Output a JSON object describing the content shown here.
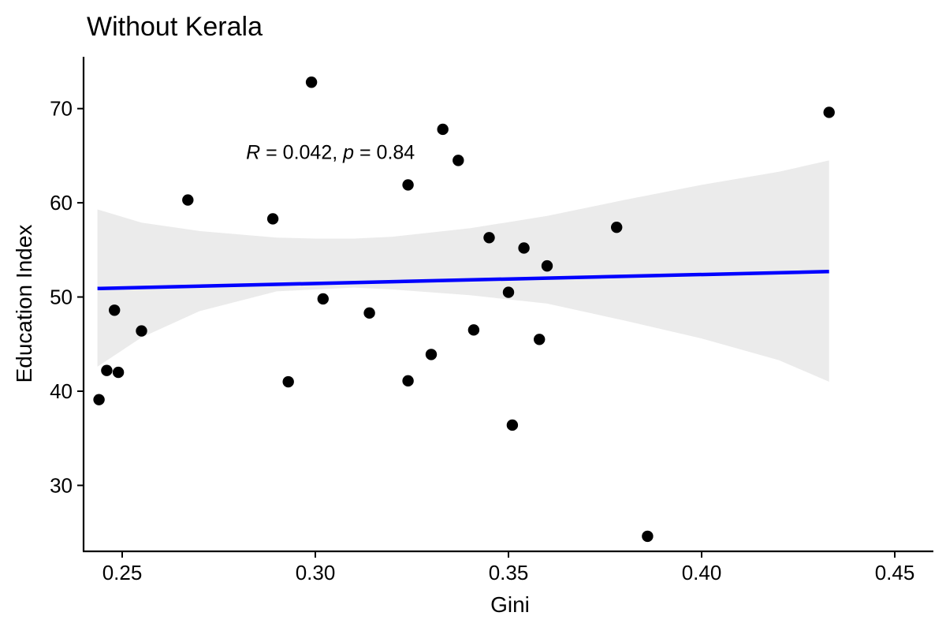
{
  "chart_data": {
    "type": "scatter",
    "title": "Without Kerala",
    "xlabel": "Gini",
    "ylabel": "Education Index",
    "xlim": [
      0.24,
      0.46
    ],
    "ylim": [
      23.0,
      75.5
    ],
    "x_ticks": [
      0.25,
      0.3,
      0.35,
      0.4,
      0.45
    ],
    "x_tick_labels": [
      "0.25",
      "0.30",
      "0.35",
      "0.40",
      "0.45"
    ],
    "y_ticks": [
      30,
      40,
      50,
      60,
      70
    ],
    "y_tick_labels": [
      "30",
      "40",
      "50",
      "60",
      "70"
    ],
    "grid": false,
    "annotation": {
      "r_symbol": "R",
      "r_text": " = 0.042, ",
      "p_symbol": "p",
      "p_text": " = 0.84",
      "x": 0.3086,
      "y": 65.4
    },
    "regression": {
      "x": [
        0.2436,
        0.433
      ],
      "y": [
        50.9,
        52.7
      ],
      "color": "#0000ff",
      "ci": [
        {
          "x": 0.2436,
          "lower": 42.6,
          "upper": 59.3
        },
        {
          "x": 0.255,
          "lower": 45.7,
          "upper": 57.9
        },
        {
          "x": 0.27,
          "lower": 48.5,
          "upper": 57.0
        },
        {
          "x": 0.29,
          "lower": 50.6,
          "upper": 56.3
        },
        {
          "x": 0.3,
          "lower": 50.8,
          "upper": 56.2
        },
        {
          "x": 0.31,
          "lower": 51.0,
          "upper": 56.2
        },
        {
          "x": 0.32,
          "lower": 50.8,
          "upper": 56.4
        },
        {
          "x": 0.34,
          "lower": 50.2,
          "upper": 57.3
        },
        {
          "x": 0.36,
          "lower": 49.3,
          "upper": 58.6
        },
        {
          "x": 0.38,
          "lower": 47.5,
          "upper": 60.3
        },
        {
          "x": 0.4,
          "lower": 45.6,
          "upper": 61.9
        },
        {
          "x": 0.42,
          "lower": 43.3,
          "upper": 63.3
        },
        {
          "x": 0.433,
          "lower": 41.0,
          "upper": 64.5
        }
      ],
      "band_color": "#ebebeb"
    },
    "points": [
      {
        "x": 0.244,
        "y": 39.1
      },
      {
        "x": 0.246,
        "y": 42.2
      },
      {
        "x": 0.248,
        "y": 48.6
      },
      {
        "x": 0.249,
        "y": 42.0
      },
      {
        "x": 0.255,
        "y": 46.4
      },
      {
        "x": 0.267,
        "y": 60.3
      },
      {
        "x": 0.289,
        "y": 58.3
      },
      {
        "x": 0.293,
        "y": 41.0
      },
      {
        "x": 0.299,
        "y": 72.8
      },
      {
        "x": 0.302,
        "y": 49.8
      },
      {
        "x": 0.314,
        "y": 48.3
      },
      {
        "x": 0.324,
        "y": 61.9
      },
      {
        "x": 0.324,
        "y": 41.1
      },
      {
        "x": 0.33,
        "y": 43.9
      },
      {
        "x": 0.333,
        "y": 67.8
      },
      {
        "x": 0.337,
        "y": 64.5
      },
      {
        "x": 0.341,
        "y": 46.5
      },
      {
        "x": 0.345,
        "y": 56.3
      },
      {
        "x": 0.35,
        "y": 50.5
      },
      {
        "x": 0.351,
        "y": 36.4
      },
      {
        "x": 0.354,
        "y": 55.2
      },
      {
        "x": 0.358,
        "y": 45.5
      },
      {
        "x": 0.36,
        "y": 53.3
      },
      {
        "x": 0.378,
        "y": 57.4
      },
      {
        "x": 0.386,
        "y": 24.6
      },
      {
        "x": 0.433,
        "y": 69.6
      }
    ],
    "point_color": "#000000"
  }
}
